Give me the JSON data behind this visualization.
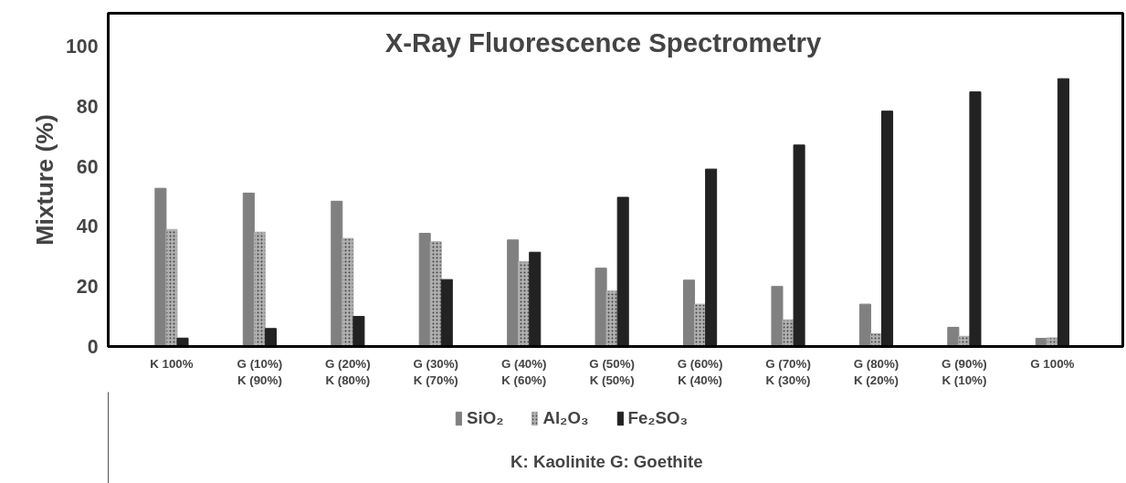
{
  "chart_data": {
    "type": "bar",
    "title": "X-Ray Fluorescence Spectrometry",
    "ylabel": "Mixture (%)",
    "categories": [
      "K 100%",
      "G (10%)\nK (90%)",
      "G (20%)\nK (80%)",
      "G (30%)\nK (70%)",
      "G (40%)\nK (60%)",
      "G (50%)\nK (50%)",
      "G (60%)\nK (40%)",
      "G (70%)\nK (30%)",
      "G (80%)\nK (20%)",
      "G (90%)\nK (10%)",
      "G 100%"
    ],
    "series": [
      {
        "name": "SiO₂",
        "color": "#808080",
        "values": [
          52.7,
          51.1,
          48.4,
          37.7,
          35.5,
          26.1,
          22.1,
          20.0,
          14.1,
          6.4,
          2.7
        ]
      },
      {
        "name": "Al₂O₃",
        "color": "#b0b0b0",
        "values": [
          39.0,
          38.1,
          36.0,
          34.9,
          28.3,
          18.5,
          14.1,
          8.9,
          4.3,
          3.4,
          2.9
        ]
      },
      {
        "name": "Fe₂SO₃",
        "color": "#222222",
        "values": [
          2.8,
          6.0,
          10.0,
          22.3,
          31.4,
          49.7,
          59.1,
          67.1,
          78.4,
          84.8,
          89.2
        ]
      }
    ],
    "ylim": [
      0,
      111
    ],
    "yticks": [
      0,
      20,
      40,
      60,
      80,
      100
    ],
    "grid": false,
    "legend": "bottom",
    "annotations": [
      "K: Kaolinite   G: Goethite"
    ]
  }
}
